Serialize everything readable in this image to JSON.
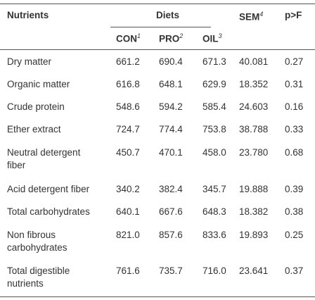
{
  "header": {
    "nutrients": "Nutrients",
    "diets": "Diets",
    "sem": {
      "name": "SEM",
      "note": "4"
    },
    "p": "p>F",
    "columns": [
      {
        "name": "CON",
        "note": "1"
      },
      {
        "name": "PRO",
        "note": "2"
      },
      {
        "name": "OIL",
        "note": "3"
      }
    ]
  },
  "table": {
    "rows": [
      [
        "Dry matter",
        "661.2",
        "690.4",
        "671.3",
        "40.081",
        "0.27"
      ],
      [
        "Organic matter",
        "616.8",
        "648.1",
        "629.9",
        "18.352",
        "0.31"
      ],
      [
        "Crude protein",
        "548.6",
        "594.2",
        "585.4",
        "24.603",
        "0.16"
      ],
      [
        "Ether extract",
        "724.7",
        "774.4",
        "753.8",
        "38.788",
        "0.33"
      ],
      [
        "Neutral detergent\nfiber",
        "450.7",
        "470.1",
        "458.0",
        "23.780",
        "0.68"
      ],
      [
        "Acid detergent fiber",
        "340.2",
        "382.4",
        "345.7",
        "19.888",
        "0.39"
      ],
      [
        "Total carbohydrates",
        "640.1",
        "667.6",
        "648.3",
        "18.382",
        "0.38"
      ],
      [
        "Non fibrous\ncarbohydrates",
        "821.0",
        "857.6",
        "833.6",
        "19.893",
        "0.25"
      ],
      [
        "Total digestible\nnutrients",
        "761.6",
        "735.7",
        "716.0",
        "23.641",
        "0.37"
      ]
    ]
  }
}
